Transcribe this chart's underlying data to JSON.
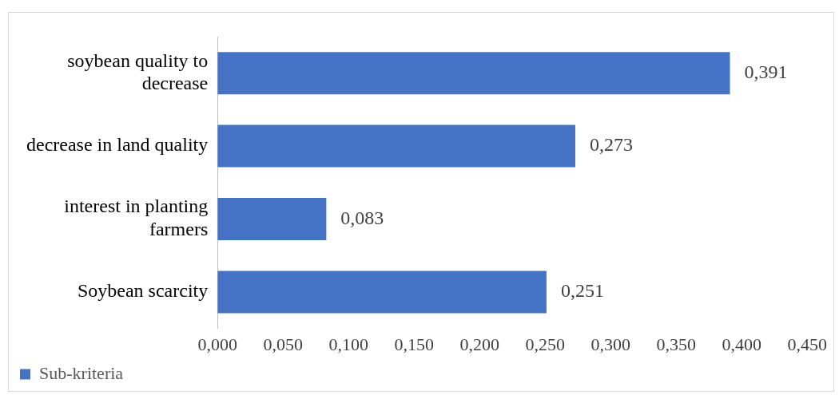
{
  "chart_data": {
    "type": "bar",
    "orientation": "horizontal",
    "categories": [
      "soybean quality to decrease",
      "decrease in land quality",
      "interest in planting farmers",
      "Soybean scarcity"
    ],
    "series": [
      {
        "name": "Sub-kriteria",
        "color": "#4472c4",
        "values": [
          0.391,
          0.273,
          0.083,
          0.251
        ]
      }
    ],
    "value_labels": [
      "0,391",
      "0,273",
      "0,083",
      "0,251"
    ],
    "xlim": [
      0,
      0.45
    ],
    "xticks": [
      {
        "value": 0,
        "label": "0,000"
      },
      {
        "value": 0.05,
        "label": "0,050"
      },
      {
        "value": 0.1,
        "label": "0,100"
      },
      {
        "value": 0.15,
        "label": "0,150"
      },
      {
        "value": 0.2,
        "label": "0,200"
      },
      {
        "value": 0.25,
        "label": "0,250"
      },
      {
        "value": 0.3,
        "label": "0,300"
      },
      {
        "value": 0.35,
        "label": "0,350"
      },
      {
        "value": 0.4,
        "label": "0,400"
      },
      {
        "value": 0.45,
        "label": "0,450"
      }
    ],
    "grid": false,
    "legend": "bottom left"
  }
}
